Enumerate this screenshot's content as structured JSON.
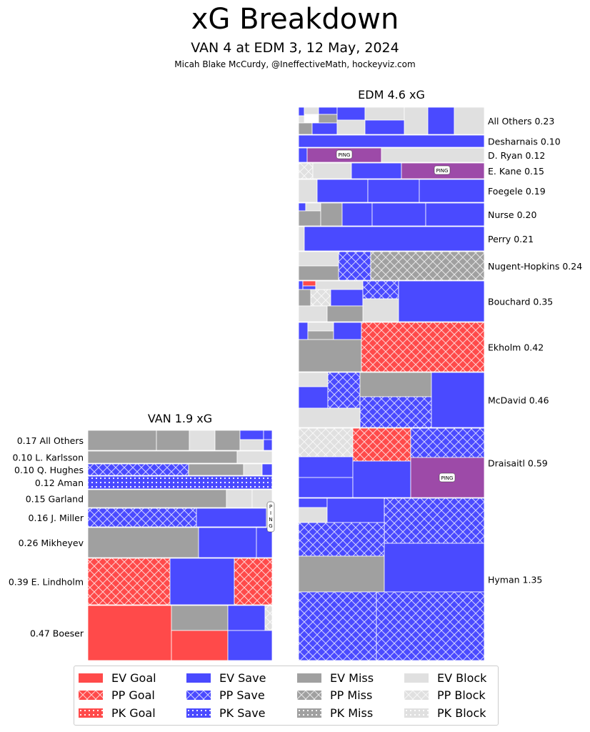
{
  "title": "xG Breakdown",
  "subtitle": "VAN 4 at EDM 3, 12 May, 2024",
  "credit": "Micah Blake McCurdy, @IneffectiveMath, hockeyviz.com",
  "colors": {
    "goal": "#ff4a4a",
    "save": "#4a4aff",
    "miss": "#a0a0a0",
    "block": "#e0e0e0",
    "penalty": "#9d4aa8"
  },
  "chart_data": {
    "type": "treemap",
    "teams": [
      {
        "name": "EDM 4.6 xG",
        "players": [
          {
            "label": "All Others 0.23",
            "xg": 0.23
          },
          {
            "label": "Desharnais 0.10",
            "xg": 0.1
          },
          {
            "label": "D. Ryan 0.12",
            "xg": 0.12
          },
          {
            "label": "E. Kane 0.15",
            "xg": 0.15
          },
          {
            "label": "Foegele 0.19",
            "xg": 0.19
          },
          {
            "label": "Nurse 0.20",
            "xg": 0.2
          },
          {
            "label": "Perry 0.21",
            "xg": 0.21
          },
          {
            "label": "Nugent-Hopkins 0.24",
            "xg": 0.24
          },
          {
            "label": "Bouchard 0.35",
            "xg": 0.35
          },
          {
            "label": "Ekholm 0.42",
            "xg": 0.42
          },
          {
            "label": "McDavid 0.46",
            "xg": 0.46
          },
          {
            "label": "Draisaitl 0.59",
            "xg": 0.59
          },
          {
            "label": "Hyman 1.35",
            "xg": 1.35
          }
        ]
      },
      {
        "name": "VAN 1.9 xG",
        "players": [
          {
            "label": "0.17 All Others",
            "xg": 0.17
          },
          {
            "label": "0.10 L. Karlsson",
            "xg": 0.1
          },
          {
            "label": "0.10 Q. Hughes",
            "xg": 0.1
          },
          {
            "label": "0.12 Aman",
            "xg": 0.12
          },
          {
            "label": "0.15 Garland",
            "xg": 0.15
          },
          {
            "label": "0.16 J. Miller",
            "xg": 0.16
          },
          {
            "label": "0.26 Mikheyev",
            "xg": 0.26
          },
          {
            "label": "0.39 E. Lindholm",
            "xg": 0.39
          },
          {
            "label": "0.47 Boeser",
            "xg": 0.47
          }
        ]
      }
    ],
    "penalty_labels": [
      "PING",
      "PING",
      "PING",
      "PING"
    ],
    "legend": [
      {
        "label": "EV Goal",
        "color": "goal",
        "pattern": "solid"
      },
      {
        "label": "EV Save",
        "color": "save",
        "pattern": "solid"
      },
      {
        "label": "EV Miss",
        "color": "miss",
        "pattern": "solid"
      },
      {
        "label": "EV Block",
        "color": "block",
        "pattern": "solid"
      },
      {
        "label": "PP Goal",
        "color": "goal",
        "pattern": "cross"
      },
      {
        "label": "PP Save",
        "color": "save",
        "pattern": "cross"
      },
      {
        "label": "PP Miss",
        "color": "miss",
        "pattern": "cross"
      },
      {
        "label": "PP Block",
        "color": "block",
        "pattern": "cross"
      },
      {
        "label": "PK Goal",
        "color": "goal",
        "pattern": "dots"
      },
      {
        "label": "PK Save",
        "color": "save",
        "pattern": "dots"
      },
      {
        "label": "PK Miss",
        "color": "miss",
        "pattern": "dots"
      },
      {
        "label": "PK Block",
        "color": "block",
        "pattern": "dots"
      }
    ]
  }
}
